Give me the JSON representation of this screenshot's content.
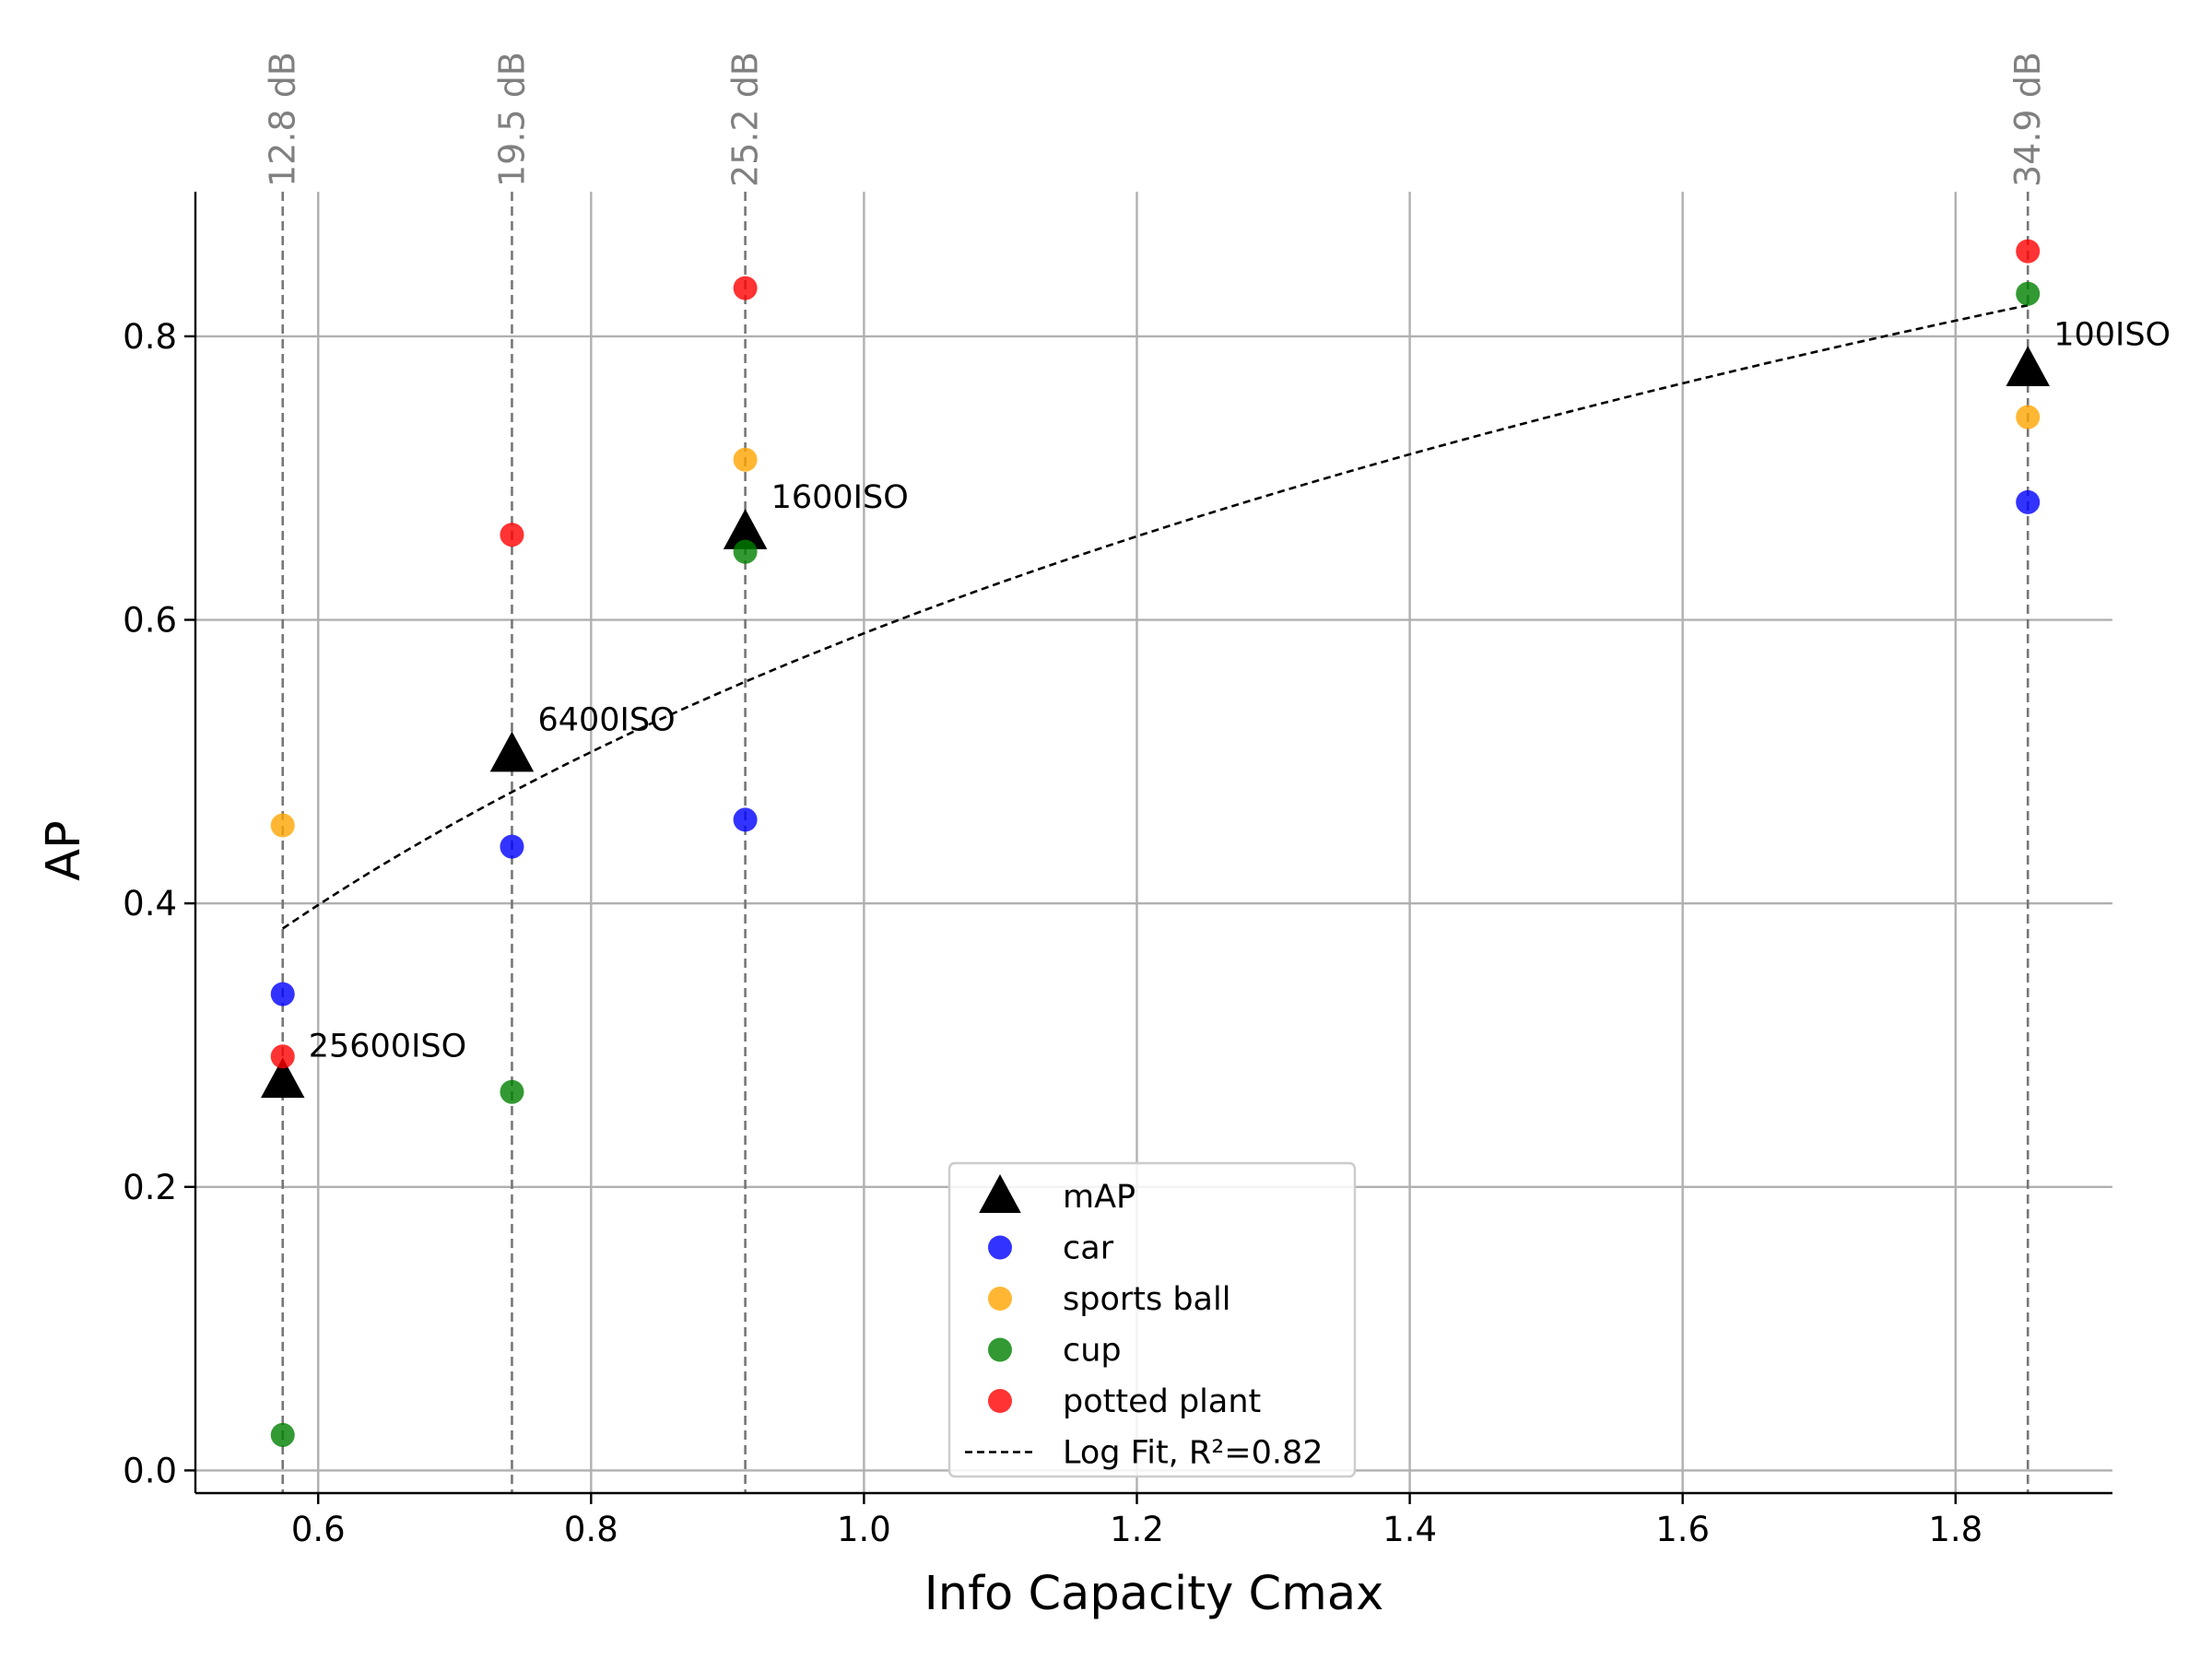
{
  "chart_data": {
    "type": "scatter",
    "xlabel": "Info Capacity Cmax",
    "ylabel": "AP",
    "xlim": [
      0.51,
      1.915
    ],
    "ylim": [
      -0.016,
      0.902
    ],
    "xticks": [
      0.6,
      0.8,
      1.0,
      1.2,
      1.4,
      1.6,
      1.8
    ],
    "xtick_labels": [
      "0.6",
      "0.8",
      "1.0",
      "1.2",
      "1.4",
      "1.6",
      "1.8"
    ],
    "yticks": [
      0.0,
      0.2,
      0.4,
      0.6,
      0.8
    ],
    "ytick_labels": [
      "0.0",
      "0.2",
      "0.4",
      "0.6",
      "0.8"
    ],
    "grid": true,
    "legend_position": "lower-center",
    "reference_lines": [
      {
        "x": 0.574,
        "label": "12.8 dB"
      },
      {
        "x": 0.742,
        "label": "19.5 dB"
      },
      {
        "x": 0.913,
        "label": "25.2 dB"
      },
      {
        "x": 1.853,
        "label": "34.9 dB"
      }
    ],
    "series": [
      {
        "name": "mAP",
        "marker": "triangle",
        "color": "#000000",
        "points": [
          {
            "x": 0.574,
            "y": 0.275,
            "label": "25600ISO"
          },
          {
            "x": 0.742,
            "y": 0.505,
            "label": "6400ISO"
          },
          {
            "x": 0.913,
            "y": 0.662,
            "label": "1600ISO"
          },
          {
            "x": 1.853,
            "y": 0.777,
            "label": "100ISO"
          }
        ]
      },
      {
        "name": "car",
        "marker": "circle",
        "color": "#0000ff",
        "points": [
          {
            "x": 0.574,
            "y": 0.336
          },
          {
            "x": 0.742,
            "y": 0.44
          },
          {
            "x": 0.913,
            "y": 0.459
          },
          {
            "x": 1.853,
            "y": 0.683
          }
        ]
      },
      {
        "name": "sports ball",
        "marker": "circle",
        "color": "#ffa500",
        "points": [
          {
            "x": 0.574,
            "y": 0.455
          },
          {
            "x": 1.853,
            "y": 0.743
          },
          {
            "x": 0.913,
            "y": 0.713
          }
        ]
      },
      {
        "name": "cup",
        "marker": "circle",
        "color": "#008000",
        "points": [
          {
            "x": 0.574,
            "y": 0.025
          },
          {
            "x": 0.742,
            "y": 0.267
          },
          {
            "x": 0.913,
            "y": 0.648
          },
          {
            "x": 1.853,
            "y": 0.83
          }
        ]
      },
      {
        "name": "potted plant",
        "marker": "circle",
        "color": "#ff0000",
        "points": [
          {
            "x": 0.574,
            "y": 0.292
          },
          {
            "x": 0.742,
            "y": 0.66
          },
          {
            "x": 0.913,
            "y": 0.834
          },
          {
            "x": 1.853,
            "y": 0.86
          }
        ]
      }
    ],
    "fit": {
      "name": "Log Fit, R²=0.82",
      "type": "log",
      "a": 0.5905,
      "b": 0.3752,
      "x_range": [
        0.574,
        1.853
      ],
      "color": "#000000"
    }
  }
}
